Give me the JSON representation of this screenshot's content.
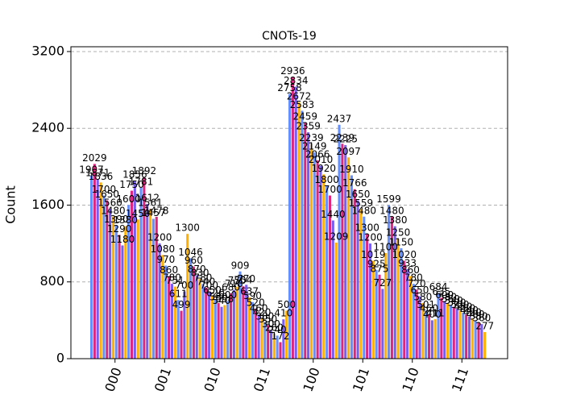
{
  "chart_data": {
    "type": "bar",
    "title": "CNOTs-19",
    "ylabel": "Count",
    "categories": [
      "000",
      "001",
      "010",
      "011",
      "100",
      "101",
      "110",
      "111"
    ],
    "series": [
      {
        "color": "#648fff",
        "values": [
          1907,
          1781,
          1046,
          909,
          2758,
          2437,
          1599,
          684
        ]
      },
      {
        "color": "#dc267f",
        "values": [
          2029,
          1892,
          960,
          754,
          2936,
          2239,
          1480,
          635
        ]
      },
      {
        "color": "#785ef0",
        "values": [
          1871,
          1612,
          870,
          770,
          2834,
          2225,
          1380,
          600
        ]
      },
      {
        "color": "#ffb000",
        "values": [
          1836,
          1561,
          830,
          637,
          2672,
          2097,
          1250,
          580
        ]
      },
      {
        "color": "#648fff",
        "values": [
          1700,
          1457,
          780,
          590,
          2583,
          1910,
          1150,
          560
        ]
      },
      {
        "color": "#dc267f",
        "values": [
          1650,
          1478,
          740,
          520,
          2459,
          1766,
          1020,
          540
        ]
      },
      {
        "color": "#785ef0",
        "values": [
          1560,
          1200,
          700,
          460,
          2359,
          1650,
          933,
          520
        ]
      },
      {
        "color": "#ffb000",
        "values": [
          1480,
          1080,
          650,
          420,
          2239,
          1559,
          860,
          500
        ]
      },
      {
        "color": "#648fff",
        "values": [
          1390,
          970,
          620,
          380,
          2149,
          1480,
          780,
          480
        ]
      },
      {
        "color": "#dc267f",
        "values": [
          1290,
          860,
          580,
          350,
          2066,
          1300,
          720,
          460
        ]
      },
      {
        "color": "#785ef0",
        "values": [
          1180,
          780,
          540,
          300,
          2010,
          1200,
          650,
          440
        ]
      },
      {
        "color": "#ffb000",
        "values": [
          1380,
          751,
          558,
          260,
          1920,
          1019,
          580,
          420
        ]
      },
      {
        "color": "#648fff",
        "values": [
          1600,
          611,
          600,
          240,
          1800,
          925,
          501,
          400
        ]
      },
      {
        "color": "#dc267f",
        "values": [
          1750,
          499,
          680,
          172,
          1700,
          875,
          460,
          380
        ]
      },
      {
        "color": "#785ef0",
        "values": [
          1856,
          700,
          718,
          410,
          1440,
          727,
          400,
          360
        ]
      },
      {
        "color": "#ffb000",
        "values": [
          1450,
          1300,
          750,
          500,
          1209,
          1100,
          411,
          277
        ]
      }
    ],
    "ylim": [
      0,
      3250
    ],
    "yticks": [
      0,
      800,
      1600,
      2400,
      3200
    ],
    "grid": true
  }
}
